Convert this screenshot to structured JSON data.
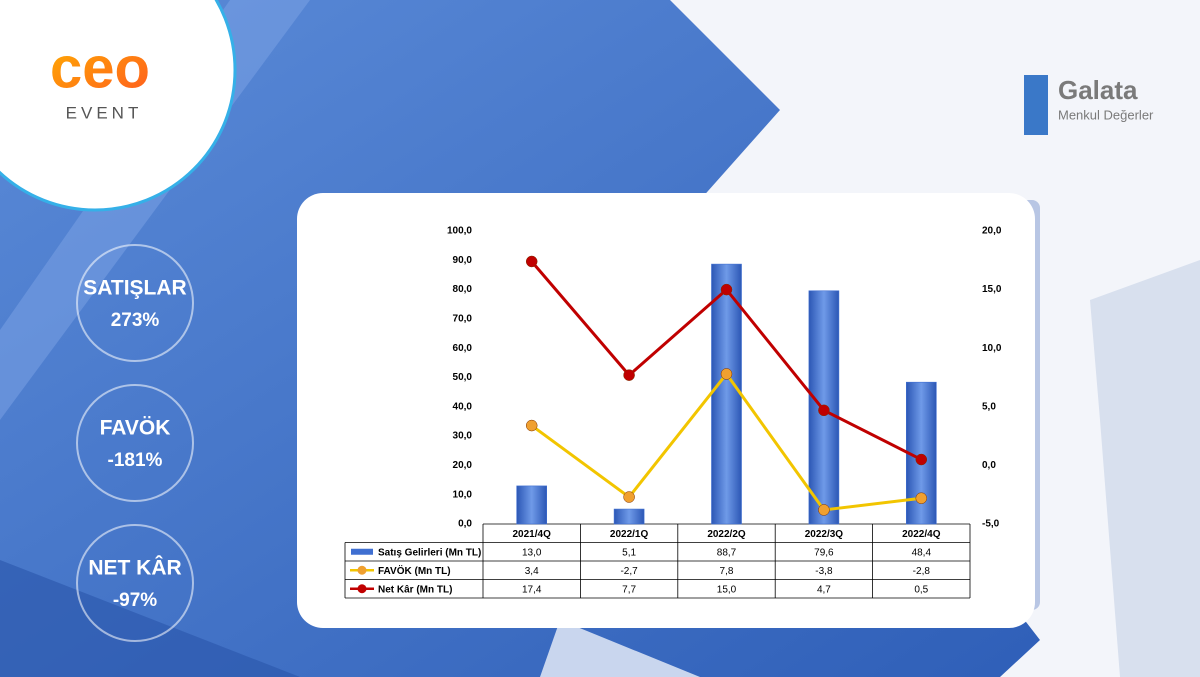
{
  "logos": {
    "event_word": "ceo",
    "event_sub": "EVENT",
    "broker_name": "Galata",
    "broker_sub": "Menkul Değerler"
  },
  "kpis": [
    {
      "label": "SATIŞLAR",
      "value": "273%"
    },
    {
      "label": "FAVÖK",
      "value": "-181%"
    },
    {
      "label": "NET KÂR",
      "value": "-97%"
    }
  ],
  "chart_data": {
    "type": "bar_line",
    "categories": [
      "2021/4Q",
      "2022/1Q",
      "2022/2Q",
      "2022/3Q",
      "2022/4Q"
    ],
    "series": [
      {
        "name": "Satış Gelirleri (Mn TL)",
        "type": "bar",
        "color": "#3f6fd1",
        "values": [
          13.0,
          5.1,
          88.7,
          79.6,
          48.4
        ],
        "value_labels": [
          "13,0",
          "5,1",
          "88,7",
          "79,6",
          "48,4"
        ]
      },
      {
        "name": "FAVÖK (Mn TL)",
        "type": "line",
        "axis": "y2",
        "color": "#f2c500",
        "marker_color": "#f0a030",
        "values": [
          3.4,
          -2.7,
          7.8,
          -3.8,
          -2.8
        ],
        "value_labels": [
          "3,4",
          "-2,7",
          "7,8",
          "-3,8",
          "-2,8"
        ]
      },
      {
        "name": "Net Kâr (Mn TL)",
        "type": "line",
        "axis": "y2",
        "color": "#c00000",
        "marker_color": "#c00000",
        "values": [
          17.4,
          7.7,
          15.0,
          4.7,
          0.5
        ],
        "value_labels": [
          "17,4",
          "7,7",
          "15,0",
          "4,7",
          "0,5"
        ]
      }
    ],
    "ylim": [
      0,
      100
    ],
    "yticks": [
      {
        "value": 0,
        "label": "0,0"
      },
      {
        "value": 10,
        "label": "10,0"
      },
      {
        "value": 20,
        "label": "20,0"
      },
      {
        "value": 30,
        "label": "30,0"
      },
      {
        "value": 40,
        "label": "40,0"
      },
      {
        "value": 50,
        "label": "50,0"
      },
      {
        "value": 60,
        "label": "60,0"
      },
      {
        "value": 70,
        "label": "70,0"
      },
      {
        "value": 80,
        "label": "80,0"
      },
      {
        "value": 90,
        "label": "90,0"
      },
      {
        "value": 100,
        "label": "100,0"
      }
    ],
    "y2lim": [
      -5,
      20
    ],
    "y2ticks": [
      {
        "value": -5,
        "label": "-5,0"
      },
      {
        "value": 0,
        "label": "0,0"
      },
      {
        "value": 5,
        "label": "5,0"
      },
      {
        "value": 10,
        "label": "10,0"
      },
      {
        "value": 15,
        "label": "15,0"
      },
      {
        "value": 20,
        "label": "20,0"
      }
    ]
  }
}
